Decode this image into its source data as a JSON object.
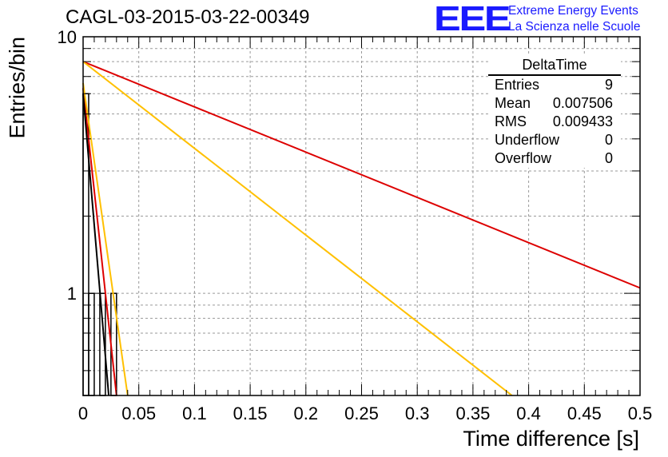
{
  "title": "CAGL-03-2015-03-22-00349",
  "logo": {
    "mark": "EEE",
    "line1": "Extreme Energy Events",
    "line2": "La Scienza nelle Scuole"
  },
  "stats": {
    "name": "DeltaTime",
    "rows": [
      {
        "label": "Entries",
        "value": "9"
      },
      {
        "label": "Mean",
        "value": "0.007506"
      },
      {
        "label": "RMS",
        "value": "0.009433"
      },
      {
        "label": "Underflow",
        "value": "0"
      },
      {
        "label": "Overflow",
        "value": "0"
      }
    ]
  },
  "chart_data": {
    "type": "bar",
    "xlabel": "Time difference [s]",
    "ylabel": "Entries/bin",
    "xlim": [
      0,
      0.5
    ],
    "ylim": [
      0.4,
      10
    ],
    "ylog": true,
    "grid": true,
    "x_ticks": [
      "0",
      "0.05",
      "0.1",
      "0.15",
      "0.2",
      "0.25",
      "0.3",
      "0.35",
      "0.4",
      "0.45",
      "0.5"
    ],
    "y_ticks": [
      "1",
      "10"
    ],
    "histogram": {
      "bin_width": 0.005,
      "bins": [
        {
          "x0": 0.0,
          "x1": 0.005,
          "y": 6
        },
        {
          "x0": 0.005,
          "x1": 0.01,
          "y": 1
        },
        {
          "x0": 0.01,
          "x1": 0.015,
          "y": 0
        },
        {
          "x0": 0.015,
          "x1": 0.02,
          "y": 1
        },
        {
          "x0": 0.02,
          "x1": 0.025,
          "y": 0
        },
        {
          "x0": 0.025,
          "x1": 0.03,
          "y": 1
        }
      ],
      "color": "#000000"
    },
    "fits": [
      {
        "x": [
          0.0,
          0.5
        ],
        "y": [
          8.0,
          1.05
        ],
        "color": "#dd0000"
      },
      {
        "x": [
          0.0,
          0.385
        ],
        "y": [
          8.0,
          0.4
        ],
        "color": "#ffc000"
      },
      {
        "x": [
          0.0,
          0.03
        ],
        "y": [
          6.3,
          0.4
        ],
        "color": "#dd0000"
      },
      {
        "x": [
          0.0,
          0.04
        ],
        "y": [
          6.6,
          0.4
        ],
        "color": "#ffc000"
      },
      {
        "x": [
          0.0,
          0.023
        ],
        "y": [
          6.0,
          0.4
        ],
        "color": "#000000"
      }
    ]
  }
}
